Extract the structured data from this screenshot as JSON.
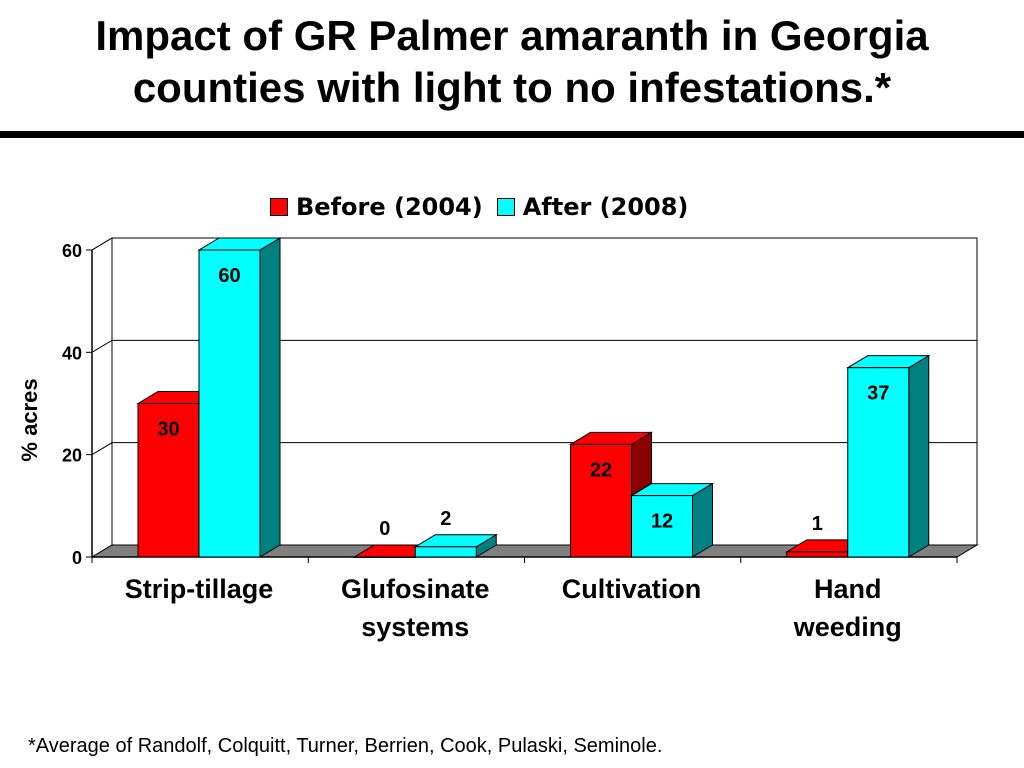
{
  "slide": {
    "title_line1": "Impact of GR Palmer amaranth in Georgia",
    "title_line2": "counties with light to no infestations.*",
    "footnote": "*Average of Randolf, Colquitt, Turner, Berrien, Cook, Pulaski, Seminole."
  },
  "chart_data": {
    "type": "bar",
    "style": "3d-clustered-column",
    "categories": [
      [
        "Strip-tillage"
      ],
      [
        "Glufosinate",
        "systems"
      ],
      [
        "Cultivation"
      ],
      [
        "Hand",
        "weeding"
      ]
    ],
    "series": [
      {
        "name": "Before (2004)",
        "values": [
          30,
          0,
          22,
          1
        ],
        "color": "#ff0000",
        "side_color": "#8b0000"
      },
      {
        "name": "After (2008)",
        "values": [
          60,
          2,
          12,
          37
        ],
        "color": "#00ffff",
        "side_color": "#008080"
      }
    ],
    "data_labels": [
      [
        "30",
        "0",
        "22",
        "1"
      ],
      [
        "60",
        "2",
        "12",
        "37"
      ]
    ],
    "ylabel": "% acres",
    "ylim": [
      0,
      60
    ],
    "yticks": [
      0,
      20,
      40,
      60
    ],
    "grid": true,
    "legend_position": "top"
  }
}
